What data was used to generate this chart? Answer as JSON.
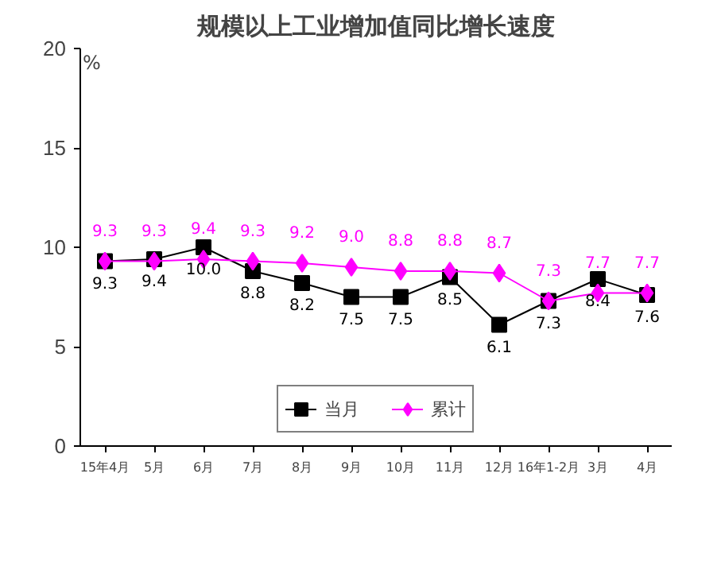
{
  "chart_data": {
    "type": "line",
    "title": "规模以上工业增加值同比增长速度",
    "ylabel": "%",
    "categories": [
      "15年4月",
      "5月",
      "6月",
      "7月",
      "8月",
      "9月",
      "10月",
      "11月",
      "12月",
      "16年1-2月",
      "3月",
      "4月"
    ],
    "series": [
      {
        "name": "当月",
        "color": "#000000",
        "marker": "square",
        "values": [
          9.3,
          9.4,
          10.0,
          8.8,
          8.2,
          7.5,
          7.5,
          8.5,
          6.1,
          7.3,
          8.4,
          7.6
        ],
        "value_labels": [
          "9.3",
          "9.4",
          "10.0",
          "8.8",
          "8.2",
          "7.5",
          "7.5",
          "8.5",
          "6.1",
          "7.3",
          "8.4",
          "7.6"
        ]
      },
      {
        "name": "累计",
        "color": "#ff00ff",
        "marker": "diamond",
        "values": [
          9.3,
          9.3,
          9.4,
          9.3,
          9.2,
          9.0,
          8.8,
          8.8,
          8.7,
          7.3,
          7.7,
          7.7
        ],
        "value_labels": [
          "9.3",
          "9.3",
          "9.4",
          "9.3",
          "9.2",
          "9.0",
          "8.8",
          "8.8",
          "8.7",
          "7.3",
          "7.7",
          "7.7"
        ]
      }
    ],
    "ylim": [
      0,
      20
    ],
    "yticks": [
      0,
      5,
      10,
      15,
      20
    ],
    "grid": false,
    "legend": "bottom"
  }
}
